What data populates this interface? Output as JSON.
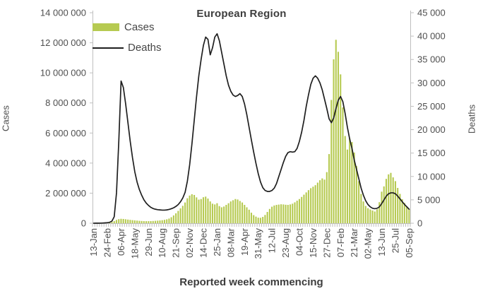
{
  "chart": {
    "title": "European Region",
    "x_axis_title": "Reported week commencing",
    "y_left_title": "Cases",
    "y_right_title": "Deaths",
    "legend": {
      "cases_label": "Cases",
      "deaths_label": "Deaths"
    },
    "colors": {
      "bar": "#b6ca51",
      "line": "#1f1f1f",
      "axis": "#bfbfbf",
      "tick_text": "#4f4f4f",
      "title_text": "#3d3d3d"
    }
  },
  "chart_data": {
    "type": "combo-bar-line",
    "title": "European Region",
    "xlabel": "Reported week commencing",
    "gridlines": false,
    "legend_position": "top-left-inside",
    "x_tick_labels": [
      "13-Jan",
      "24-Feb",
      "06-Apr",
      "18-May",
      "29-Jun",
      "10-Aug",
      "21-Sep",
      "02-Nov",
      "14-Dec",
      "25-Jan",
      "08-Mar",
      "19-Apr",
      "31-May",
      "12-Jul",
      "23-Aug",
      "04-Oct",
      "15-Nov",
      "27-Dec",
      "07-Feb",
      "21-Mar",
      "02-May",
      "13-Jun",
      "25-Jul",
      "05-Sep"
    ],
    "x_tick_interval_weeks": 6,
    "n_weeks": 139,
    "y_left": {
      "title": "Cases",
      "min": 0,
      "max": 14000000,
      "step": 2000000
    },
    "y_right": {
      "title": "Deaths",
      "min": 0,
      "max": 45000,
      "step": 5000
    },
    "series": [
      {
        "name": "Cases",
        "type": "bar",
        "axis": "left",
        "values": [
          2000,
          3000,
          5000,
          8000,
          12000,
          20000,
          30000,
          45000,
          80000,
          140000,
          220000,
          270000,
          295000,
          285000,
          265000,
          245000,
          225000,
          205000,
          190000,
          175000,
          160000,
          150000,
          142000,
          138000,
          138000,
          142000,
          150000,
          160000,
          172000,
          186000,
          202000,
          225000,
          260000,
          310000,
          400000,
          520000,
          660000,
          820000,
          990000,
          1160000,
          1380000,
          1660000,
          1840000,
          1930000,
          1880000,
          1720000,
          1570000,
          1610000,
          1730000,
          1770000,
          1640000,
          1450000,
          1300000,
          1250000,
          1330000,
          1140000,
          1060000,
          1110000,
          1220000,
          1330000,
          1450000,
          1530000,
          1610000,
          1580000,
          1480000,
          1380000,
          1220000,
          1060000,
          900000,
          700000,
          540000,
          440000,
          370000,
          360000,
          420000,
          550000,
          750000,
          950000,
          1100000,
          1180000,
          1220000,
          1240000,
          1260000,
          1250000,
          1230000,
          1220000,
          1250000,
          1300000,
          1390000,
          1500000,
          1610000,
          1750000,
          1900000,
          2050000,
          2200000,
          2330000,
          2430000,
          2530000,
          2700000,
          2860000,
          2980000,
          2900000,
          3400000,
          4600000,
          8200000,
          10900000,
          12200000,
          11400000,
          9900000,
          7700000,
          5800000,
          4900000,
          5650000,
          5400000,
          4700000,
          3800000,
          2800000,
          1950000,
          1450000,
          1150000,
          1000000,
          920000,
          850000,
          780000,
          930000,
          1400000,
          2100000,
          2450000,
          2950000,
          3250000,
          3350000,
          3050000,
          2800000,
          2350000,
          1950000,
          1600000,
          1350000,
          1120000,
          950000
        ]
      },
      {
        "name": "Deaths",
        "type": "line",
        "axis": "right",
        "values": [
          10,
          15,
          20,
          30,
          50,
          80,
          120,
          200,
          450,
          1400,
          6500,
          17500,
          30400,
          29000,
          25500,
          21500,
          17500,
          14000,
          11000,
          8800,
          7200,
          6000,
          5000,
          4300,
          3800,
          3400,
          3150,
          3000,
          2900,
          2850,
          2800,
          2800,
          2850,
          2950,
          3100,
          3300,
          3600,
          4000,
          4600,
          5400,
          6600,
          9000,
          12500,
          17000,
          22000,
          27000,
          31500,
          35000,
          38000,
          39800,
          39300,
          36000,
          37500,
          39800,
          40500,
          39000,
          36500,
          34000,
          31500,
          29500,
          28200,
          27400,
          27100,
          27300,
          27700,
          27100,
          25500,
          23200,
          20500,
          17800,
          15200,
          12800,
          10600,
          8800,
          7600,
          7000,
          6800,
          6800,
          7000,
          7500,
          8500,
          10000,
          11500,
          13000,
          14300,
          15100,
          15300,
          15200,
          15300,
          16000,
          17500,
          19500,
          22000,
          25000,
          27500,
          29700,
          31000,
          31500,
          31000,
          30000,
          28500,
          26500,
          24500,
          22300,
          21500,
          22500,
          24500,
          26300,
          27100,
          26000,
          23500,
          20500,
          18000,
          16000,
          13500,
          11500,
          9500,
          7500,
          6000,
          4800,
          4000,
          3500,
          3200,
          3100,
          3200,
          3500,
          4200,
          5000,
          5800,
          6300,
          6500,
          6500,
          6300,
          5800,
          5200,
          4600,
          4000,
          3500,
          3000
        ]
      }
    ]
  }
}
